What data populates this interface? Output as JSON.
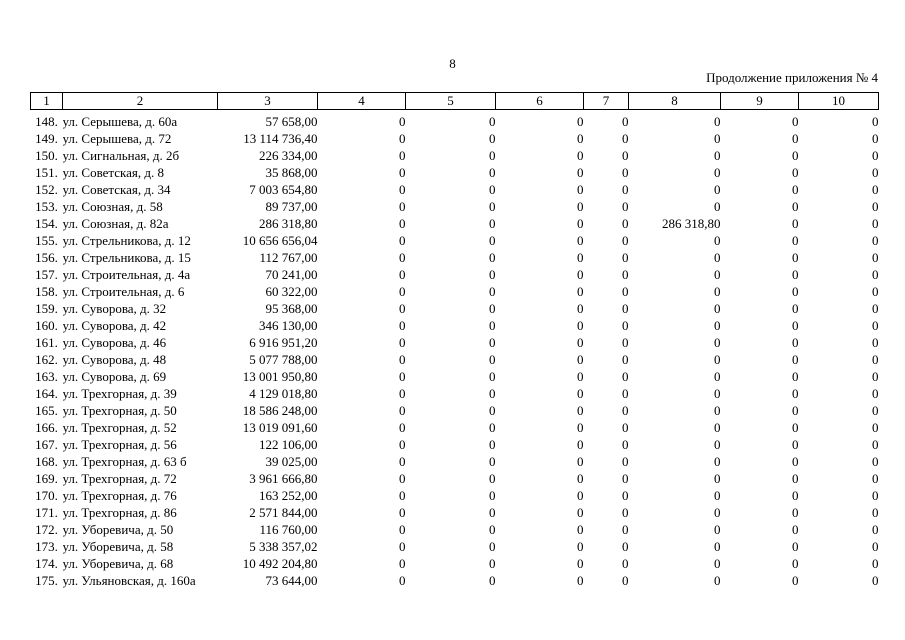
{
  "page": {
    "number": "8",
    "continuation_label": "Продолжение приложения № 4"
  },
  "table": {
    "headers": [
      "1",
      "2",
      "3",
      "4",
      "5",
      "6",
      "7",
      "8",
      "9",
      "10"
    ],
    "rows": [
      [
        "148.",
        "ул. Серышева, д. 60а",
        "57 658,00",
        "0",
        "0",
        "0",
        "0",
        "0",
        "0",
        "0"
      ],
      [
        "149.",
        "ул. Серышева, д. 72",
        "13 114 736,40",
        "0",
        "0",
        "0",
        "0",
        "0",
        "0",
        "0"
      ],
      [
        "150.",
        "ул. Сигнальная, д. 2б",
        "226 334,00",
        "0",
        "0",
        "0",
        "0",
        "0",
        "0",
        "0"
      ],
      [
        "151.",
        "ул. Советская, д. 8",
        "35 868,00",
        "0",
        "0",
        "0",
        "0",
        "0",
        "0",
        "0"
      ],
      [
        "152.",
        "ул. Советская, д. 34",
        "7 003 654,80",
        "0",
        "0",
        "0",
        "0",
        "0",
        "0",
        "0"
      ],
      [
        "153.",
        "ул. Союзная, д. 58",
        "89 737,00",
        "0",
        "0",
        "0",
        "0",
        "0",
        "0",
        "0"
      ],
      [
        "154.",
        "ул. Союзная, д. 82а",
        "286 318,80",
        "0",
        "0",
        "0",
        "0",
        "286 318,80",
        "0",
        "0"
      ],
      [
        "155.",
        "ул. Стрельникова, д. 12",
        "10 656 656,04",
        "0",
        "0",
        "0",
        "0",
        "0",
        "0",
        "0"
      ],
      [
        "156.",
        "ул. Стрельникова, д. 15",
        "112 767,00",
        "0",
        "0",
        "0",
        "0",
        "0",
        "0",
        "0"
      ],
      [
        "157.",
        "ул. Строительная, д. 4а",
        "70 241,00",
        "0",
        "0",
        "0",
        "0",
        "0",
        "0",
        "0"
      ],
      [
        "158.",
        "ул. Строительная, д. 6",
        "60 322,00",
        "0",
        "0",
        "0",
        "0",
        "0",
        "0",
        "0"
      ],
      [
        "159.",
        "ул. Суворова, д. 32",
        "95 368,00",
        "0",
        "0",
        "0",
        "0",
        "0",
        "0",
        "0"
      ],
      [
        "160.",
        "ул. Суворова, д. 42",
        "346 130,00",
        "0",
        "0",
        "0",
        "0",
        "0",
        "0",
        "0"
      ],
      [
        "161.",
        "ул. Суворова, д. 46",
        "6 916 951,20",
        "0",
        "0",
        "0",
        "0",
        "0",
        "0",
        "0"
      ],
      [
        "162.",
        "ул. Суворова, д. 48",
        "5 077 788,00",
        "0",
        "0",
        "0",
        "0",
        "0",
        "0",
        "0"
      ],
      [
        "163.",
        "ул. Суворова, д. 69",
        "13 001 950,80",
        "0",
        "0",
        "0",
        "0",
        "0",
        "0",
        "0"
      ],
      [
        "164.",
        "ул. Трехгорная, д. 39",
        "4 129 018,80",
        "0",
        "0",
        "0",
        "0",
        "0",
        "0",
        "0"
      ],
      [
        "165.",
        "ул. Трехгорная, д. 50",
        "18 586 248,00",
        "0",
        "0",
        "0",
        "0",
        "0",
        "0",
        "0"
      ],
      [
        "166.",
        "ул. Трехгорная, д. 52",
        "13 019 091,60",
        "0",
        "0",
        "0",
        "0",
        "0",
        "0",
        "0"
      ],
      [
        "167.",
        "ул. Трехгорная, д. 56",
        "122 106,00",
        "0",
        "0",
        "0",
        "0",
        "0",
        "0",
        "0"
      ],
      [
        "168.",
        "ул. Трехгорная, д. 63 б",
        "39 025,00",
        "0",
        "0",
        "0",
        "0",
        "0",
        "0",
        "0"
      ],
      [
        "169.",
        "ул. Трехгорная, д. 72",
        "3 961 666,80",
        "0",
        "0",
        "0",
        "0",
        "0",
        "0",
        "0"
      ],
      [
        "170.",
        "ул. Трехгорная, д. 76",
        "163 252,00",
        "0",
        "0",
        "0",
        "0",
        "0",
        "0",
        "0"
      ],
      [
        "171.",
        "ул. Трехгорная, д. 86",
        "2 571 844,00",
        "0",
        "0",
        "0",
        "0",
        "0",
        "0",
        "0"
      ],
      [
        "172.",
        "ул. Уборевича, д. 50",
        "116 760,00",
        "0",
        "0",
        "0",
        "0",
        "0",
        "0",
        "0"
      ],
      [
        "173.",
        "ул. Уборевича, д. 58",
        "5 338 357,02",
        "0",
        "0",
        "0",
        "0",
        "0",
        "0",
        "0"
      ],
      [
        "174.",
        "ул. Уборевича, д. 68",
        "10 492 204,80",
        "0",
        "0",
        "0",
        "0",
        "0",
        "0",
        "0"
      ],
      [
        "175.",
        "ул. Ульяновская, д. 160а",
        "73 644,00",
        "0",
        "0",
        "0",
        "0",
        "0",
        "0",
        "0"
      ]
    ]
  }
}
